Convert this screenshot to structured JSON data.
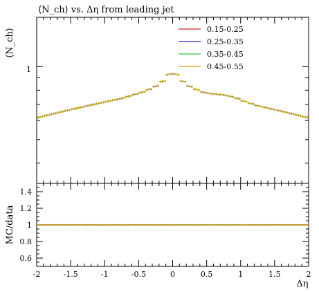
{
  "chart_data": [
    {
      "type": "scatter",
      "title": "⟨N_ch⟩ vs. Δη from leading jet",
      "ylabel": "⟨N_ch⟩",
      "xlabel": "",
      "xlim": [
        -2,
        2
      ],
      "yscale": "log",
      "ytick_labels": [
        "1"
      ],
      "legend_placement": "top-right",
      "legend": [
        "0.15-0.25",
        "0.25-0.35",
        "0.35-0.45",
        "0.45-0.55"
      ],
      "series_colors": [
        "#d62728",
        "#1f1fd6",
        "#2ecc40",
        "#d9a000"
      ],
      "x": [
        -1.95,
        -1.85,
        -1.75,
        -1.65,
        -1.55,
        -1.45,
        -1.35,
        -1.25,
        -1.15,
        -1.05,
        -0.95,
        -0.85,
        -0.75,
        -0.65,
        -0.55,
        -0.45,
        -0.35,
        -0.25,
        -0.15,
        -0.05,
        0.05,
        0.15,
        0.25,
        0.35,
        0.45,
        0.55,
        0.65,
        0.75,
        0.85,
        0.95,
        1.05,
        1.15,
        1.25,
        1.35,
        1.45,
        1.55,
        1.65,
        1.75,
        1.85,
        1.95
      ],
      "values": [
        0.62,
        0.63,
        0.64,
        0.65,
        0.66,
        0.67,
        0.68,
        0.69,
        0.7,
        0.71,
        0.72,
        0.73,
        0.74,
        0.755,
        0.77,
        0.785,
        0.805,
        0.83,
        0.87,
        0.93,
        0.93,
        0.87,
        0.83,
        0.805,
        0.785,
        0.775,
        0.77,
        0.765,
        0.755,
        0.74,
        0.72,
        0.705,
        0.69,
        0.68,
        0.67,
        0.66,
        0.65,
        0.64,
        0.63,
        0.62
      ]
    },
    {
      "type": "line",
      "ylabel": "MC/data",
      "xlabel": "Δη",
      "xlim": [
        -2,
        2
      ],
      "ylim": [
        0.5,
        1.5
      ],
      "x_ticks": [
        -2,
        -1.5,
        -1,
        -0.5,
        0,
        0.5,
        1,
        1.5,
        2
      ],
      "x_tick_labels": [
        "-2",
        "-1.5",
        "-1",
        "-0.5",
        "0",
        "0.5",
        "1",
        "1.5",
        "2"
      ],
      "y_ticks": [
        0.6,
        0.8,
        1.0,
        1.2,
        1.4
      ],
      "y_tick_labels": [
        "0.6",
        "0.8",
        "1",
        "1.2",
        "1.4"
      ],
      "ratio_value": 1.0
    }
  ]
}
